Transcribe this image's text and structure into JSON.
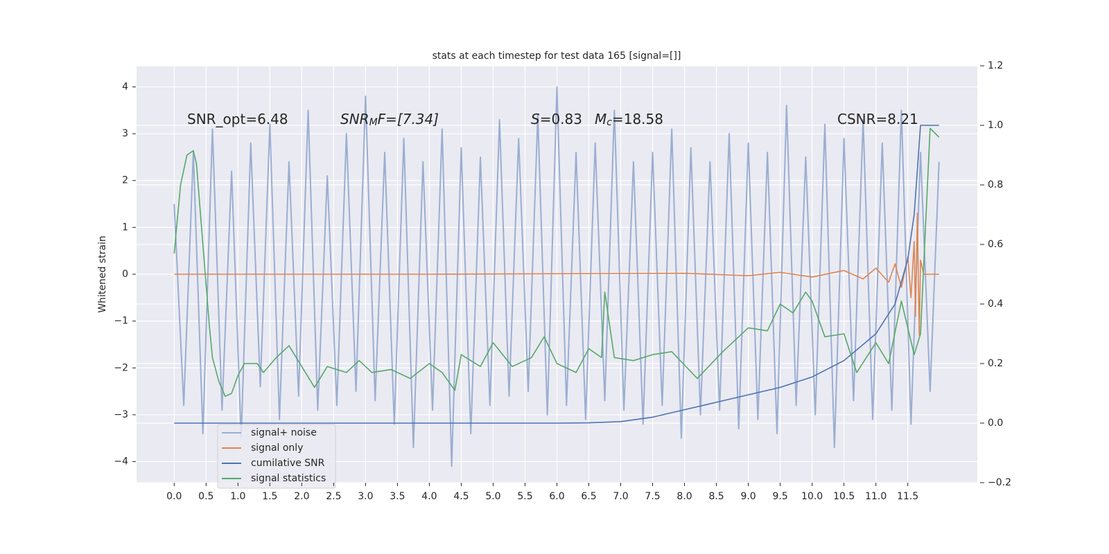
{
  "chart_data": {
    "type": "line",
    "title": "stats at each timestep for test data 165 [signal=[]]",
    "ylabel": "Whitened strain",
    "annotations": [
      {
        "parts": [
          "SNR_opt=6.48"
        ]
      },
      {
        "parts": [
          "SNR",
          "M",
          "F=[7.34]"
        ]
      },
      {
        "parts": [
          "S",
          "=0.83"
        ]
      },
      {
        "parts": [
          "M",
          "c",
          "=18.58"
        ]
      },
      {
        "parts": [
          "CSNR=8.21"
        ]
      }
    ],
    "xlim": [
      -0.59,
      12.59
    ],
    "ylim": [
      -4.45,
      4.45
    ],
    "y2lim": [
      -0.2,
      1.2
    ],
    "xticks": [
      {
        "value": 0,
        "label": "0.0"
      },
      0.5,
      {
        "value": 1,
        "label": "1.0"
      },
      1.5,
      {
        "value": 2,
        "label": "2.0"
      },
      2.5,
      {
        "value": 3,
        "label": "3.0"
      },
      3.5,
      {
        "value": 4,
        "label": "4.0"
      },
      4.5,
      {
        "value": 5,
        "label": "5.0"
      },
      5.5,
      {
        "value": 6,
        "label": "6.0"
      },
      6.5,
      {
        "value": 7,
        "label": "7.0"
      },
      7.5,
      {
        "value": 8,
        "label": "8.0"
      },
      8.5,
      {
        "value": 9,
        "label": "9.0"
      },
      9.5,
      {
        "value": 10,
        "label": "10.0"
      },
      10.5,
      {
        "value": 11,
        "label": "11.0"
      },
      11.5
    ],
    "yticks": [
      {
        "value": -4,
        "label": "−4"
      },
      {
        "value": -3,
        "label": "−3"
      },
      {
        "value": -2,
        "label": "−2"
      },
      {
        "value": -1,
        "label": "−1"
      },
      0,
      1,
      2,
      3,
      4
    ],
    "y2ticks": [
      {
        "value": -0.2,
        "label": "−0.2"
      },
      {
        "value": 0,
        "label": "0.0"
      },
      0.2,
      0.4,
      0.6,
      0.8,
      {
        "value": 1,
        "label": "1.0"
      },
      1.2
    ],
    "grid": true,
    "legend": "lower left",
    "series": [
      {
        "name": "signal+ noise",
        "color": "#9aaed1",
        "x": [
          0,
          0.15,
          0.3,
          0.45,
          0.6,
          0.75,
          0.9,
          1.05,
          1.2,
          1.35,
          1.5,
          1.65,
          1.8,
          1.95,
          2.1,
          2.25,
          2.4,
          2.55,
          2.7,
          2.85,
          3,
          3.15,
          3.3,
          3.45,
          3.6,
          3.75,
          3.9,
          4.05,
          4.2,
          4.35,
          4.5,
          4.65,
          4.8,
          4.95,
          5.1,
          5.25,
          5.4,
          5.55,
          5.7,
          5.85,
          6,
          6.15,
          6.3,
          6.45,
          6.6,
          6.75,
          6.9,
          7.05,
          7.2,
          7.35,
          7.5,
          7.65,
          7.8,
          7.95,
          8.1,
          8.25,
          8.4,
          8.55,
          8.7,
          8.85,
          9,
          9.15,
          9.3,
          9.45,
          9.6,
          9.75,
          9.9,
          10.05,
          10.2,
          10.35,
          10.5,
          10.65,
          10.8,
          10.95,
          11.1,
          11.25,
          11.4,
          11.55,
          11.7,
          11.85,
          11.99
        ],
        "values": [
          1.5,
          -2.8,
          2.6,
          -3.4,
          3.1,
          -2.9,
          2.2,
          -3.5,
          2.8,
          -2.4,
          3.2,
          -3.1,
          2.4,
          -2.6,
          3.5,
          -2.9,
          2.1,
          -2.8,
          3.0,
          -2.5,
          3.8,
          -2.7,
          2.6,
          -3.2,
          2.9,
          -3.7,
          2.4,
          -2.9,
          3.1,
          -4.1,
          2.7,
          -3.4,
          2.5,
          -2.8,
          3.3,
          -2.6,
          2.9,
          -2.5,
          3.4,
          -3.0,
          4.0,
          -2.8,
          2.6,
          -3.1,
          2.8,
          -2.7,
          3.5,
          -2.9,
          2.4,
          -3.2,
          2.6,
          -2.8,
          3.1,
          -3.5,
          2.7,
          -3.0,
          2.4,
          -2.9,
          3.0,
          -3.3,
          2.8,
          -3.1,
          2.6,
          -3.4,
          3.6,
          -2.8,
          2.5,
          -3.0,
          3.2,
          -3.7,
          2.9,
          -2.7,
          3.3,
          -3.1,
          2.8,
          -2.9,
          3.5,
          -3.2,
          2.6,
          -2.5,
          2.4
        ]
      },
      {
        "name": "signal only",
        "color": "#dd8452",
        "x": [
          0,
          4,
          8,
          9,
          9.5,
          10,
          10.5,
          10.8,
          11,
          11.2,
          11.3,
          11.4,
          11.5,
          11.55,
          11.6,
          11.62,
          11.65,
          11.68,
          11.7,
          11.75,
          11.99
        ],
        "values": [
          0,
          0,
          0.02,
          -0.03,
          0.04,
          -0.06,
          0.08,
          -0.1,
          0.13,
          -0.17,
          0.22,
          -0.28,
          0.36,
          -0.5,
          0.7,
          -0.9,
          1.3,
          -1.3,
          0.3,
          0,
          0
        ]
      },
      {
        "name": "cumilative SNR",
        "color": "#4c72b0",
        "axis": "y2",
        "x": [
          0,
          6,
          6.5,
          7,
          7.5,
          8,
          8.5,
          9,
          9.5,
          10,
          10.5,
          11,
          11.3,
          11.5,
          11.6,
          11.65,
          11.7,
          11.99
        ],
        "values": [
          0,
          0,
          0.001,
          0.005,
          0.02,
          0.045,
          0.07,
          0.095,
          0.12,
          0.155,
          0.21,
          0.3,
          0.4,
          0.55,
          0.7,
          0.85,
          1.0,
          1.0
        ]
      },
      {
        "name": "signal statistics",
        "color": "#55a868",
        "axis": "y2",
        "x": [
          0,
          0.1,
          0.2,
          0.3,
          0.35,
          0.45,
          0.55,
          0.6,
          0.7,
          0.8,
          0.9,
          1.0,
          1.1,
          1.3,
          1.4,
          1.6,
          1.8,
          2.0,
          2.2,
          2.4,
          2.7,
          2.9,
          3.1,
          3.4,
          3.7,
          4.0,
          4.2,
          4.4,
          4.5,
          4.8,
          5.0,
          5.3,
          5.6,
          5.8,
          6.0,
          6.3,
          6.5,
          6.7,
          6.75,
          6.9,
          7.2,
          7.5,
          7.8,
          8.2,
          8.6,
          9.0,
          9.3,
          9.5,
          9.7,
          9.9,
          10.0,
          10.2,
          10.5,
          10.7,
          11.0,
          11.2,
          11.4,
          11.6,
          11.7,
          11.85,
          11.99
        ],
        "values": [
          0.57,
          0.8,
          0.9,
          0.915,
          0.87,
          0.6,
          0.33,
          0.22,
          0.14,
          0.09,
          0.1,
          0.16,
          0.2,
          0.2,
          0.17,
          0.22,
          0.26,
          0.19,
          0.12,
          0.19,
          0.17,
          0.21,
          0.17,
          0.18,
          0.15,
          0.2,
          0.17,
          0.11,
          0.23,
          0.19,
          0.27,
          0.19,
          0.22,
          0.29,
          0.2,
          0.17,
          0.25,
          0.22,
          0.44,
          0.22,
          0.21,
          0.23,
          0.24,
          0.15,
          0.24,
          0.32,
          0.31,
          0.4,
          0.37,
          0.44,
          0.41,
          0.29,
          0.3,
          0.17,
          0.27,
          0.2,
          0.41,
          0.23,
          0.3,
          0.99,
          0.96
        ]
      }
    ]
  }
}
